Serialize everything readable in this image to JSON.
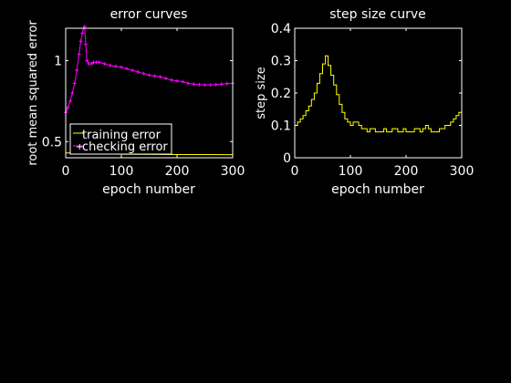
{
  "figure": {
    "background": "#000000",
    "axes_color": "#ffffff"
  },
  "chart_data": [
    {
      "type": "line",
      "title": "error curves",
      "xlabel": "epoch number",
      "ylabel": "root mean squared error",
      "xlim": [
        0,
        300
      ],
      "ylim": [
        0.4,
        1.2
      ],
      "xticks": [
        0,
        100,
        200,
        300
      ],
      "xtick_labels": [
        "0",
        "100",
        "200",
        "300"
      ],
      "yticks": [
        0.5,
        1
      ],
      "ytick_labels": [
        "0.5",
        "1"
      ],
      "legend": {
        "placement": "bottom-left",
        "entries": [
          "training error",
          "checking error"
        ]
      },
      "series": [
        {
          "name": "training error",
          "color": "#ffff00",
          "x": [
            0,
            10,
            20,
            30,
            50,
            75,
            100,
            150,
            200,
            250,
            300
          ],
          "y": [
            0.43,
            0.43,
            0.43,
            0.428,
            0.425,
            0.423,
            0.422,
            0.421,
            0.42,
            0.42,
            0.419
          ]
        },
        {
          "name": "checking error",
          "color": "#ff00ff",
          "marker": "+",
          "x": [
            0,
            4,
            8,
            12,
            16,
            20,
            24,
            27,
            30,
            32,
            34,
            36,
            38,
            42,
            46,
            50,
            55,
            60,
            70,
            80,
            90,
            100,
            110,
            120,
            130,
            140,
            150,
            160,
            170,
            180,
            190,
            200,
            210,
            220,
            230,
            240,
            250,
            260,
            270,
            280,
            290,
            300
          ],
          "y": [
            0.68,
            0.71,
            0.75,
            0.8,
            0.86,
            0.94,
            1.04,
            1.12,
            1.17,
            1.2,
            1.21,
            1.1,
            1.0,
            0.98,
            0.98,
            0.99,
            0.99,
            0.99,
            0.98,
            0.97,
            0.965,
            0.96,
            0.95,
            0.94,
            0.93,
            0.92,
            0.91,
            0.905,
            0.9,
            0.89,
            0.88,
            0.875,
            0.87,
            0.86,
            0.855,
            0.852,
            0.85,
            0.85,
            0.852,
            0.855,
            0.858,
            0.86
          ]
        }
      ]
    },
    {
      "type": "line",
      "title": "step size curve",
      "xlabel": "epoch number",
      "ylabel": "step size",
      "xlim": [
        0,
        300
      ],
      "ylim": [
        0,
        0.4
      ],
      "xticks": [
        0,
        100,
        200,
        300
      ],
      "xtick_labels": [
        "0",
        "100",
        "200",
        "300"
      ],
      "yticks": [
        0,
        0.1,
        0.2,
        0.3,
        0.4
      ],
      "ytick_labels": [
        "0",
        "0.1",
        "0.2",
        "0.3",
        "0.4"
      ],
      "series": [
        {
          "color": "#ffff00",
          "step": true,
          "x": [
            0,
            5,
            10,
            15,
            20,
            25,
            30,
            35,
            40,
            45,
            50,
            55,
            60,
            65,
            70,
            75,
            80,
            85,
            90,
            95,
            100,
            105,
            110,
            115,
            120,
            125,
            130,
            135,
            140,
            145,
            150,
            155,
            160,
            165,
            170,
            175,
            180,
            185,
            190,
            195,
            200,
            205,
            210,
            215,
            220,
            225,
            230,
            235,
            240,
            245,
            250,
            255,
            260,
            265,
            270,
            275,
            280,
            285,
            290,
            295,
            300
          ],
          "y": [
            0.1,
            0.11,
            0.12,
            0.13,
            0.145,
            0.16,
            0.18,
            0.2,
            0.23,
            0.26,
            0.29,
            0.315,
            0.285,
            0.255,
            0.225,
            0.195,
            0.165,
            0.14,
            0.12,
            0.11,
            0.1,
            0.11,
            0.11,
            0.1,
            0.09,
            0.09,
            0.08,
            0.09,
            0.09,
            0.08,
            0.08,
            0.08,
            0.09,
            0.08,
            0.08,
            0.09,
            0.09,
            0.08,
            0.08,
            0.09,
            0.08,
            0.08,
            0.08,
            0.09,
            0.09,
            0.08,
            0.09,
            0.1,
            0.09,
            0.08,
            0.08,
            0.08,
            0.09,
            0.09,
            0.1,
            0.1,
            0.11,
            0.12,
            0.13,
            0.14,
            0.15
          ]
        }
      ]
    }
  ]
}
